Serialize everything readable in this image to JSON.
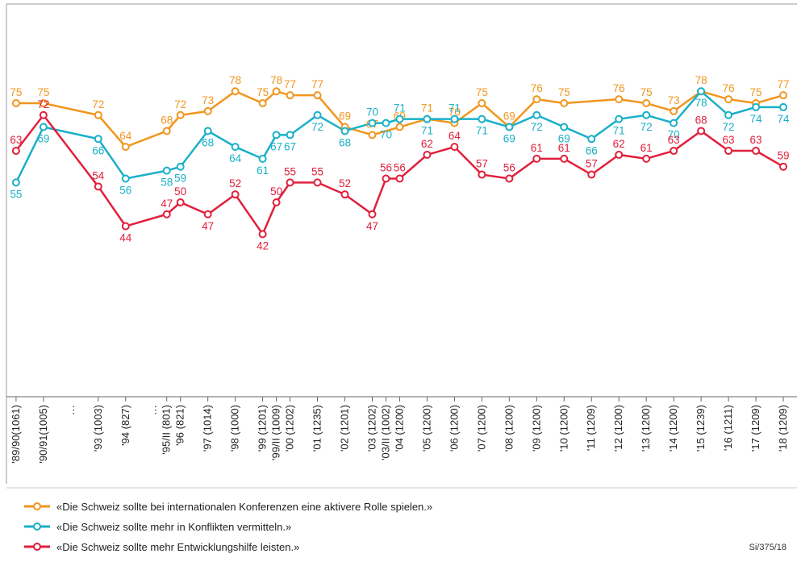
{
  "chart_data": {
    "type": "line",
    "categories": [
      "'89/90(1061)",
      "'90/91(1005)",
      "'93 (1003)",
      "'94 (827)",
      "'95/II (801)",
      "'96 (821)",
      "'97 (1014)",
      "'98 (1000)",
      "'99 (1201)",
      "'99/II (1009)",
      "'00 (1202)",
      "'01 (1235)",
      "'02 (1201)",
      "'03 (1202)",
      "'03/II (1002)",
      "'04 (1200)",
      "'05 (1200)",
      "'06 (1200)",
      "'07 (1200)",
      "'08 (1200)",
      "'09 (1200)",
      "'10 (1200)",
      "'11 (1209)",
      "'12 (1200)",
      "'13 (1200)",
      "'14 (1200)",
      "'15 (1239)",
      "'16 (1211)",
      "'17 (1209)",
      "'18 (1209)"
    ],
    "x": [
      1990,
      1991,
      1993,
      1994,
      1995.5,
      1996,
      1997,
      1998,
      1999,
      1999.5,
      2000,
      2001,
      2002,
      2003,
      2003.5,
      2004,
      2005,
      2006,
      2007,
      2008,
      2009,
      2010,
      2011,
      2012,
      2013,
      2014,
      2015,
      2016,
      2017,
      2018
    ],
    "breaks": [
      {
        "x": 1992,
        "label": "…"
      },
      {
        "x": 1995,
        "label": "…"
      }
    ],
    "xlim": [
      1989.65,
      2018.5
    ],
    "ylim": [
      0,
      100
    ],
    "series": [
      {
        "name": "«Die Schweiz sollte bei internationalen Konferenzen eine aktivere Rolle spielen.»",
        "color": "#f0961e",
        "x": [
          1990,
          1991,
          1993,
          1994,
          1995.5,
          1996,
          1997,
          1998,
          1999,
          1999.5,
          2000,
          2001,
          2002,
          2003,
          2004,
          2005,
          2006,
          2007,
          2008,
          2009,
          2010,
          2012,
          2013,
          2014,
          2015,
          2016,
          2017,
          2018
        ],
        "values": [
          75,
          75,
          72,
          64,
          68,
          72,
          73,
          78,
          75,
          78,
          77,
          77,
          69,
          67,
          69,
          71,
          70,
          75,
          69,
          76,
          75,
          76,
          75,
          73,
          78,
          76,
          75,
          77
        ]
      },
      {
        "name": "«Die Schweiz sollte mehr in Konflikten vermitteln.»",
        "color": "#1ab0c8",
        "x": [
          1990,
          1991,
          1993,
          1994,
          1995.5,
          1996,
          1997,
          1998,
          1999,
          1999.5,
          2000,
          2001,
          2002,
          2003,
          2003.5,
          2004,
          2005,
          2006,
          2007,
          2008,
          2009,
          2010,
          2011,
          2012,
          2013,
          2014,
          2015,
          2016,
          2017,
          2018
        ],
        "values": [
          55,
          69,
          66,
          56,
          58,
          59,
          68,
          64,
          61,
          67,
          67,
          72,
          68,
          70,
          70,
          71,
          71,
          71,
          71,
          69,
          72,
          69,
          66,
          71,
          72,
          70,
          78,
          72,
          74,
          74
        ]
      },
      {
        "name": "«Die Schweiz sollte mehr Entwicklungshilfe leisten.»",
        "color": "#e0203c",
        "x": [
          1990,
          1991,
          1993,
          1994,
          1995.5,
          1996,
          1997,
          1998,
          1999,
          1999.5,
          2000,
          2001,
          2002,
          2003,
          2003.5,
          2004,
          2005,
          2006,
          2007,
          2008,
          2009,
          2010,
          2011,
          2012,
          2013,
          2014,
          2015,
          2016,
          2017,
          2018
        ],
        "values": [
          63,
          72,
          54,
          44,
          47,
          50,
          47,
          52,
          42,
          50,
          55,
          55,
          52,
          47,
          56,
          56,
          62,
          64,
          57,
          56,
          61,
          61,
          57,
          62,
          61,
          63,
          68,
          63,
          63,
          59
        ]
      }
    ],
    "source": "Si/375/18"
  }
}
